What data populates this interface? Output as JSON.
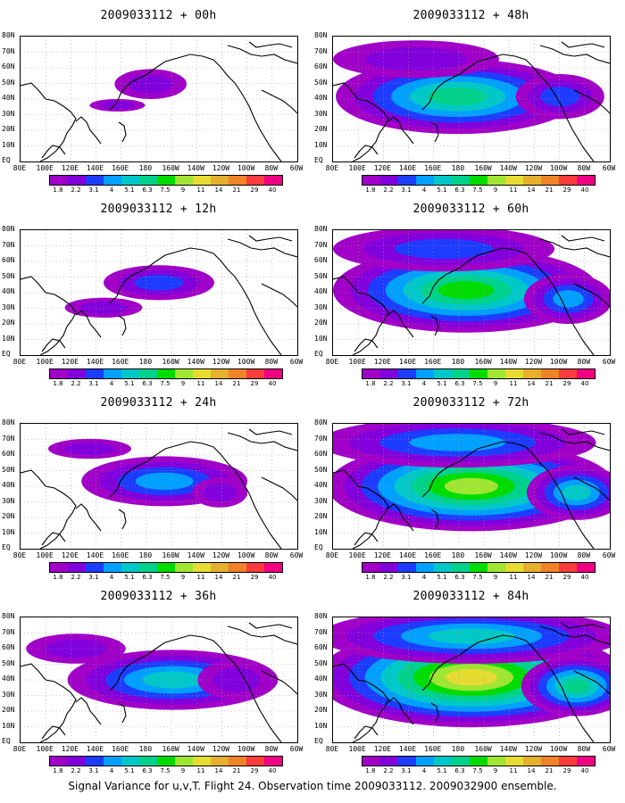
{
  "caption": "Signal Variance for u,v,T. Flight 24. Observation time 2009033112. 2009032900 ensemble.",
  "lat_labels": [
    "80N",
    "70N",
    "60N",
    "50N",
    "40N",
    "30N",
    "20N",
    "10N",
    "EQ"
  ],
  "lon_labels": [
    "80E",
    "100E",
    "120E",
    "140E",
    "160E",
    "180",
    "160W",
    "140W",
    "120W",
    "100W",
    "80W",
    "60W"
  ],
  "colorbar": {
    "labels": [
      "1.8",
      "2.2",
      "3.1",
      "4",
      "5.1",
      "6.3",
      "7.5",
      "9",
      "11",
      "14",
      "21",
      "29",
      "40"
    ],
    "colors": [
      "#a000c8",
      "#8200dc",
      "#1e3cff",
      "#00a0ff",
      "#00c8c8",
      "#00d28c",
      "#00dc00",
      "#a0e632",
      "#e6dc32",
      "#e6af2d",
      "#f08228",
      "#fa3c3c",
      "#f00082"
    ]
  },
  "panels": [
    {
      "title": "2009033112 + 00h",
      "level": 0
    },
    {
      "title": "2009033112 + 48h",
      "level": 4
    },
    {
      "title": "2009033112 + 12h",
      "level": 1
    },
    {
      "title": "2009033112 + 60h",
      "level": 5
    },
    {
      "title": "2009033112 + 24h",
      "level": 2
    },
    {
      "title": "2009033112 + 72h",
      "level": 6
    },
    {
      "title": "2009033112 + 36h",
      "level": 3
    },
    {
      "title": "2009033112 + 84h",
      "level": 7
    }
  ]
}
